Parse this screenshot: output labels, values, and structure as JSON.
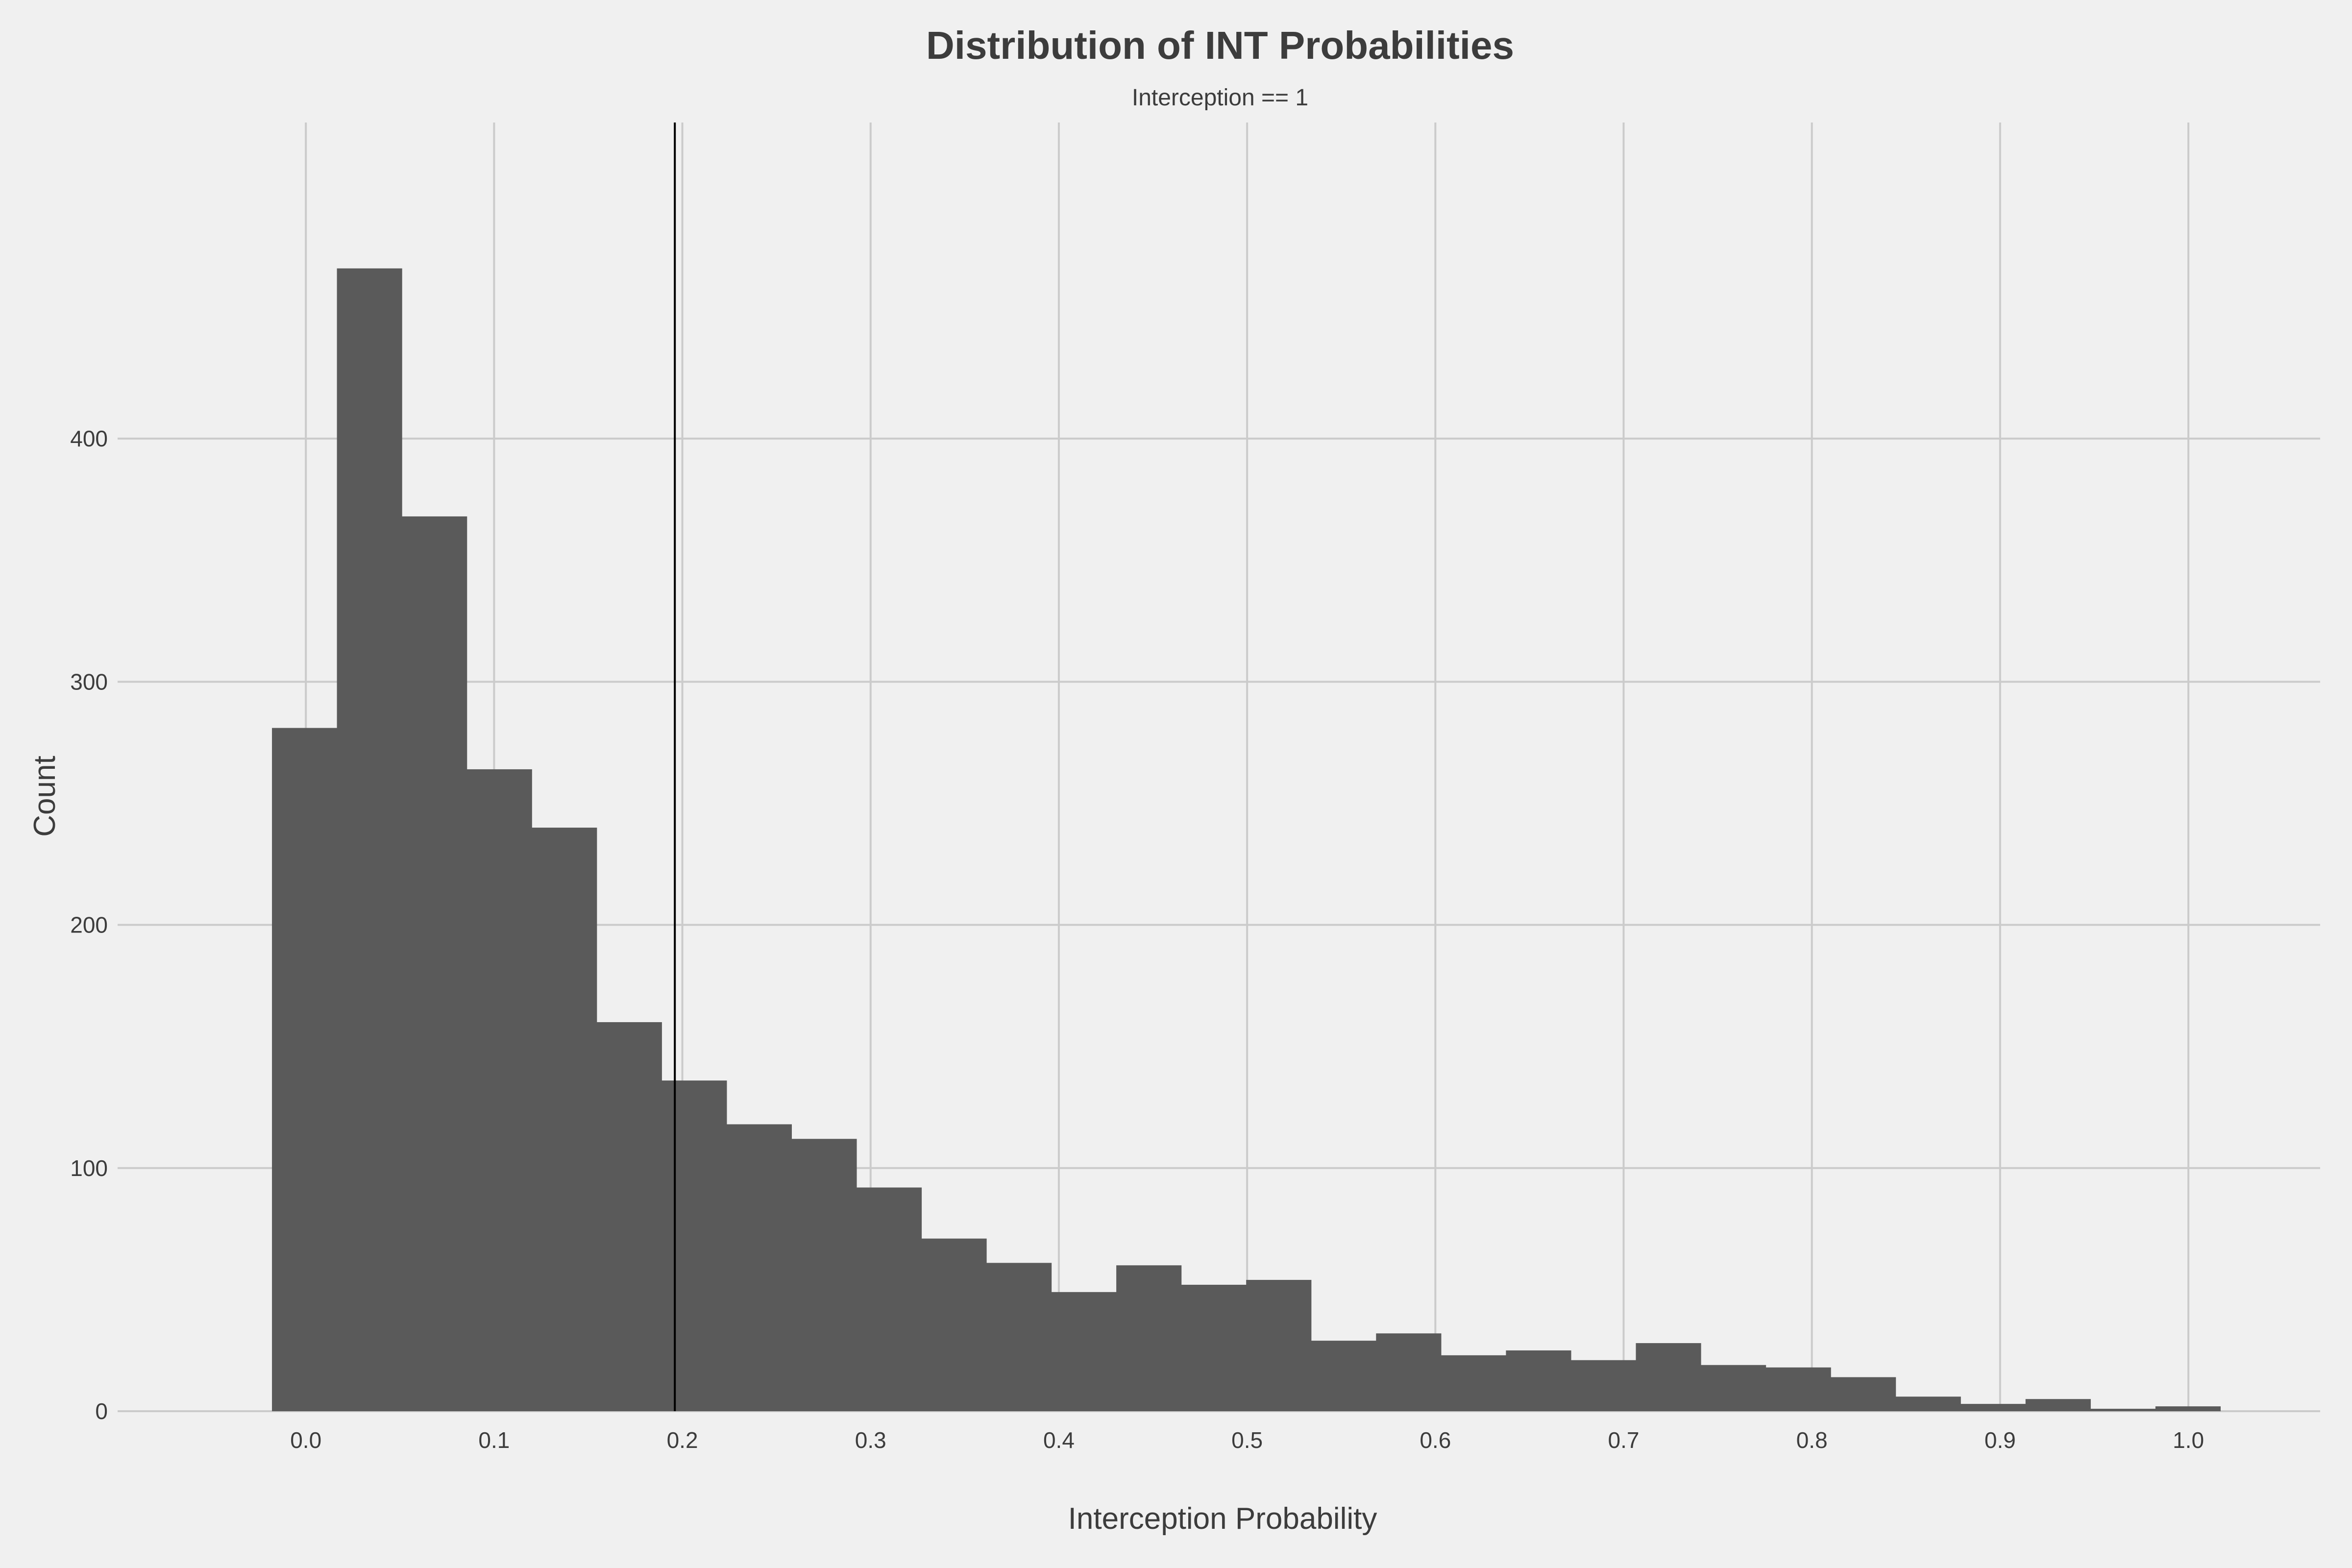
{
  "chart_data": {
    "type": "bar",
    "title": "Distribution of INT Probabilities",
    "subtitle": "Interception == 1",
    "xlabel": "Interception Probability",
    "ylabel": "Count",
    "xlim": [
      -0.1,
      1.07
    ],
    "ylim": [
      0,
      530
    ],
    "xticks": [
      "0.0",
      "0.1",
      "0.2",
      "0.3",
      "0.4",
      "0.5",
      "0.6",
      "0.7",
      "0.8",
      "0.9",
      "1.0"
    ],
    "yticks": [
      "0",
      "100",
      "200",
      "300",
      "400"
    ],
    "grid": true,
    "bin_start": -0.018,
    "bin_width": 0.0345,
    "values": [
      281,
      470,
      368,
      264,
      240,
      160,
      136,
      118,
      112,
      92,
      71,
      61,
      49,
      60,
      52,
      54,
      29,
      32,
      23,
      25,
      21,
      28,
      19,
      18,
      14,
      6,
      3,
      5,
      1,
      2
    ],
    "vline_x": 0.196,
    "colors": {
      "background": "#f0f0f0",
      "bar": "#5a5a5a",
      "grid": "#cbcbcb",
      "vline": "#000000",
      "text": "#3c3c3c"
    }
  }
}
